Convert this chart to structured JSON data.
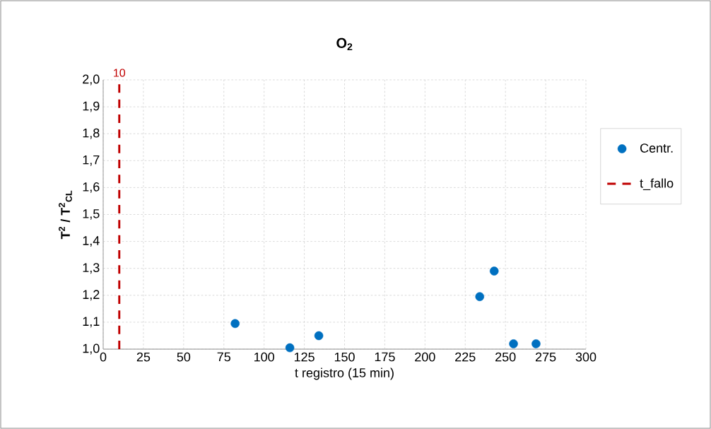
{
  "chart_data": {
    "type": "scatter",
    "title": "O$_{2}$",
    "xlabel": "t registro (15 min)",
    "ylabel": "T$^{2}$ / T$^{2}$$_{CL}$",
    "series": [
      {
        "name": "Centr.",
        "color": "#0070c0",
        "marker": "circle",
        "x": [
          82,
          116,
          134,
          234,
          243,
          255,
          269
        ],
        "values": [
          1.095,
          1.005,
          1.05,
          1.195,
          1.29,
          1.02,
          1.02
        ]
      },
      {
        "name": "t_fallo",
        "type": "line",
        "color": "#c00000",
        "marker": "none",
        "line_style": "dashed",
        "x": [
          10,
          10
        ],
        "values": [
          1.0,
          2.0
        ]
      }
    ],
    "annotations": [
      {
        "text": "10",
        "x": 10,
        "y": 2.0
      }
    ],
    "xlim": [
      0,
      300
    ],
    "xticks": [
      0,
      25,
      50,
      75,
      100,
      125,
      150,
      175,
      200,
      225,
      250,
      275,
      300
    ],
    "ylim": [
      1.0,
      2.0
    ],
    "yticks": [
      {
        "value": 1.0,
        "label": "1,0"
      },
      {
        "value": 1.1,
        "label": "1,1"
      },
      {
        "value": 1.2,
        "label": "1,2"
      },
      {
        "value": 1.3,
        "label": "1,3"
      },
      {
        "value": 1.4,
        "label": "1,4"
      },
      {
        "value": 1.5,
        "label": "1,5"
      },
      {
        "value": 1.6,
        "label": "1,6"
      },
      {
        "value": 1.7,
        "label": "1,7"
      },
      {
        "value": 1.8,
        "label": "1,8"
      },
      {
        "value": 1.9,
        "label": "1,9"
      },
      {
        "value": 2.0,
        "label": "2,0"
      }
    ],
    "grid": true,
    "legend": "right"
  }
}
